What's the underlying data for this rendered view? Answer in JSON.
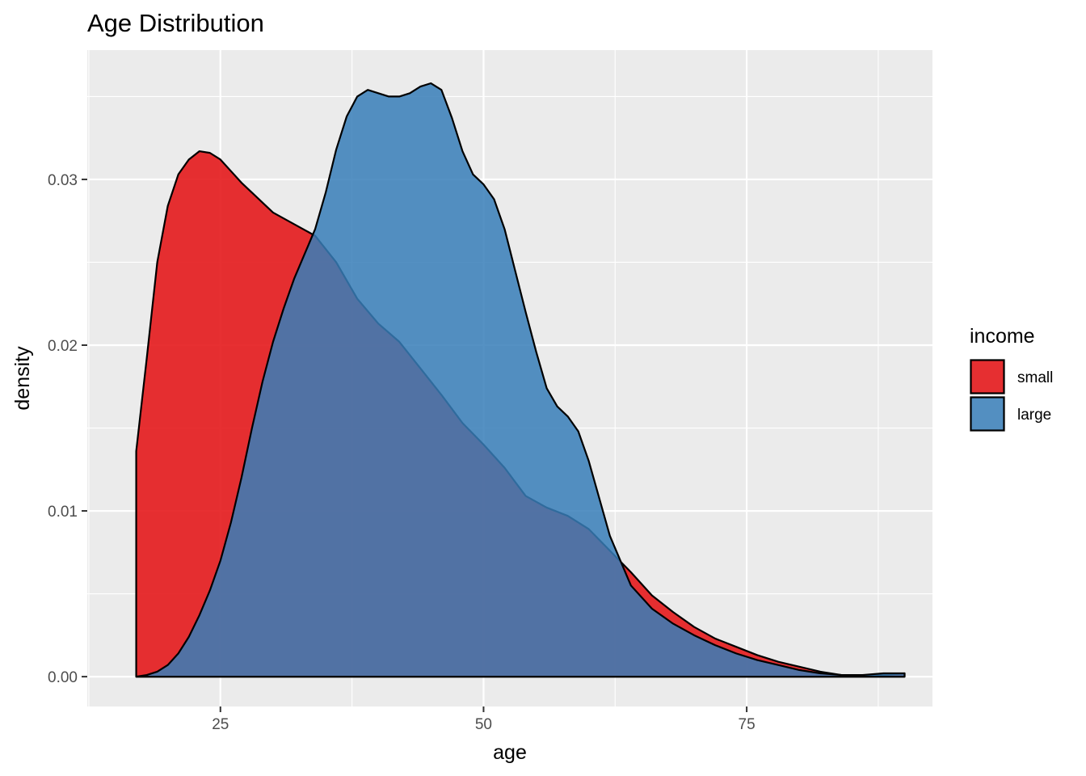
{
  "chart_data": {
    "type": "area",
    "title": "Age Distribution",
    "xlabel": "age",
    "ylabel": "density",
    "xlim": [
      12.35,
      92.65
    ],
    "ylim": [
      -0.0018,
      0.0378
    ],
    "x_ticks": [
      25,
      50,
      75
    ],
    "x_tick_labels": [
      "25",
      "50",
      "75"
    ],
    "y_ticks": [
      0.0,
      0.01,
      0.02,
      0.03
    ],
    "y_tick_labels": [
      "0.00",
      "0.01",
      "0.02",
      "0.03"
    ],
    "grid": true,
    "legend": {
      "title": "income",
      "position": "right"
    },
    "series": [
      {
        "name": "small",
        "color": "#E41A1C",
        "opacity": 0.9,
        "x": [
          17,
          18,
          19,
          20,
          21,
          22,
          23,
          24,
          25,
          26,
          27,
          28,
          30,
          32,
          34,
          36,
          38,
          40,
          42,
          44,
          46,
          48,
          50,
          52,
          54,
          56,
          58,
          60,
          62,
          64,
          66,
          68,
          70,
          72,
          74,
          76,
          78,
          80,
          82,
          84,
          86,
          88,
          90
        ],
        "values": [
          0.0136,
          0.0192,
          0.025,
          0.0284,
          0.0303,
          0.0312,
          0.0317,
          0.0316,
          0.0312,
          0.0305,
          0.0298,
          0.0292,
          0.028,
          0.0273,
          0.0266,
          0.025,
          0.0228,
          0.0213,
          0.0202,
          0.0186,
          0.017,
          0.0153,
          0.014,
          0.0126,
          0.0109,
          0.0102,
          0.0097,
          0.0089,
          0.0076,
          0.0063,
          0.0049,
          0.0039,
          0.003,
          0.0023,
          0.0018,
          0.0013,
          0.0009,
          0.0006,
          0.0003,
          0.0001,
          0.0001,
          0.0001,
          0.0002
        ]
      },
      {
        "name": "large",
        "color": "#377EB8",
        "opacity": 0.85,
        "x": [
          17,
          18,
          19,
          20,
          21,
          22,
          23,
          24,
          25,
          26,
          27,
          28,
          29,
          30,
          31,
          32,
          33,
          34,
          35,
          36,
          37,
          38,
          39,
          40,
          41,
          42,
          43,
          44,
          45,
          46,
          47,
          48,
          49,
          50,
          51,
          52,
          53,
          54,
          55,
          56,
          57,
          58,
          59,
          60,
          62,
          64,
          66,
          68,
          70,
          72,
          74,
          76,
          78,
          80,
          82,
          84,
          86,
          88,
          90
        ],
        "values": [
          0.0,
          0.0001,
          0.0003,
          0.0007,
          0.0014,
          0.0024,
          0.0037,
          0.0052,
          0.007,
          0.0093,
          0.012,
          0.015,
          0.0178,
          0.0202,
          0.0222,
          0.024,
          0.0255,
          0.027,
          0.0292,
          0.0318,
          0.0338,
          0.035,
          0.0354,
          0.0352,
          0.035,
          0.035,
          0.0352,
          0.0356,
          0.0358,
          0.0354,
          0.0337,
          0.0317,
          0.0303,
          0.0297,
          0.0288,
          0.027,
          0.0245,
          0.022,
          0.0196,
          0.0174,
          0.0163,
          0.0157,
          0.0148,
          0.013,
          0.0085,
          0.0055,
          0.0041,
          0.0032,
          0.0025,
          0.0019,
          0.0014,
          0.001,
          0.0007,
          0.0004,
          0.0002,
          0.0001,
          0.0001,
          0.0002,
          0.0002
        ]
      }
    ]
  }
}
